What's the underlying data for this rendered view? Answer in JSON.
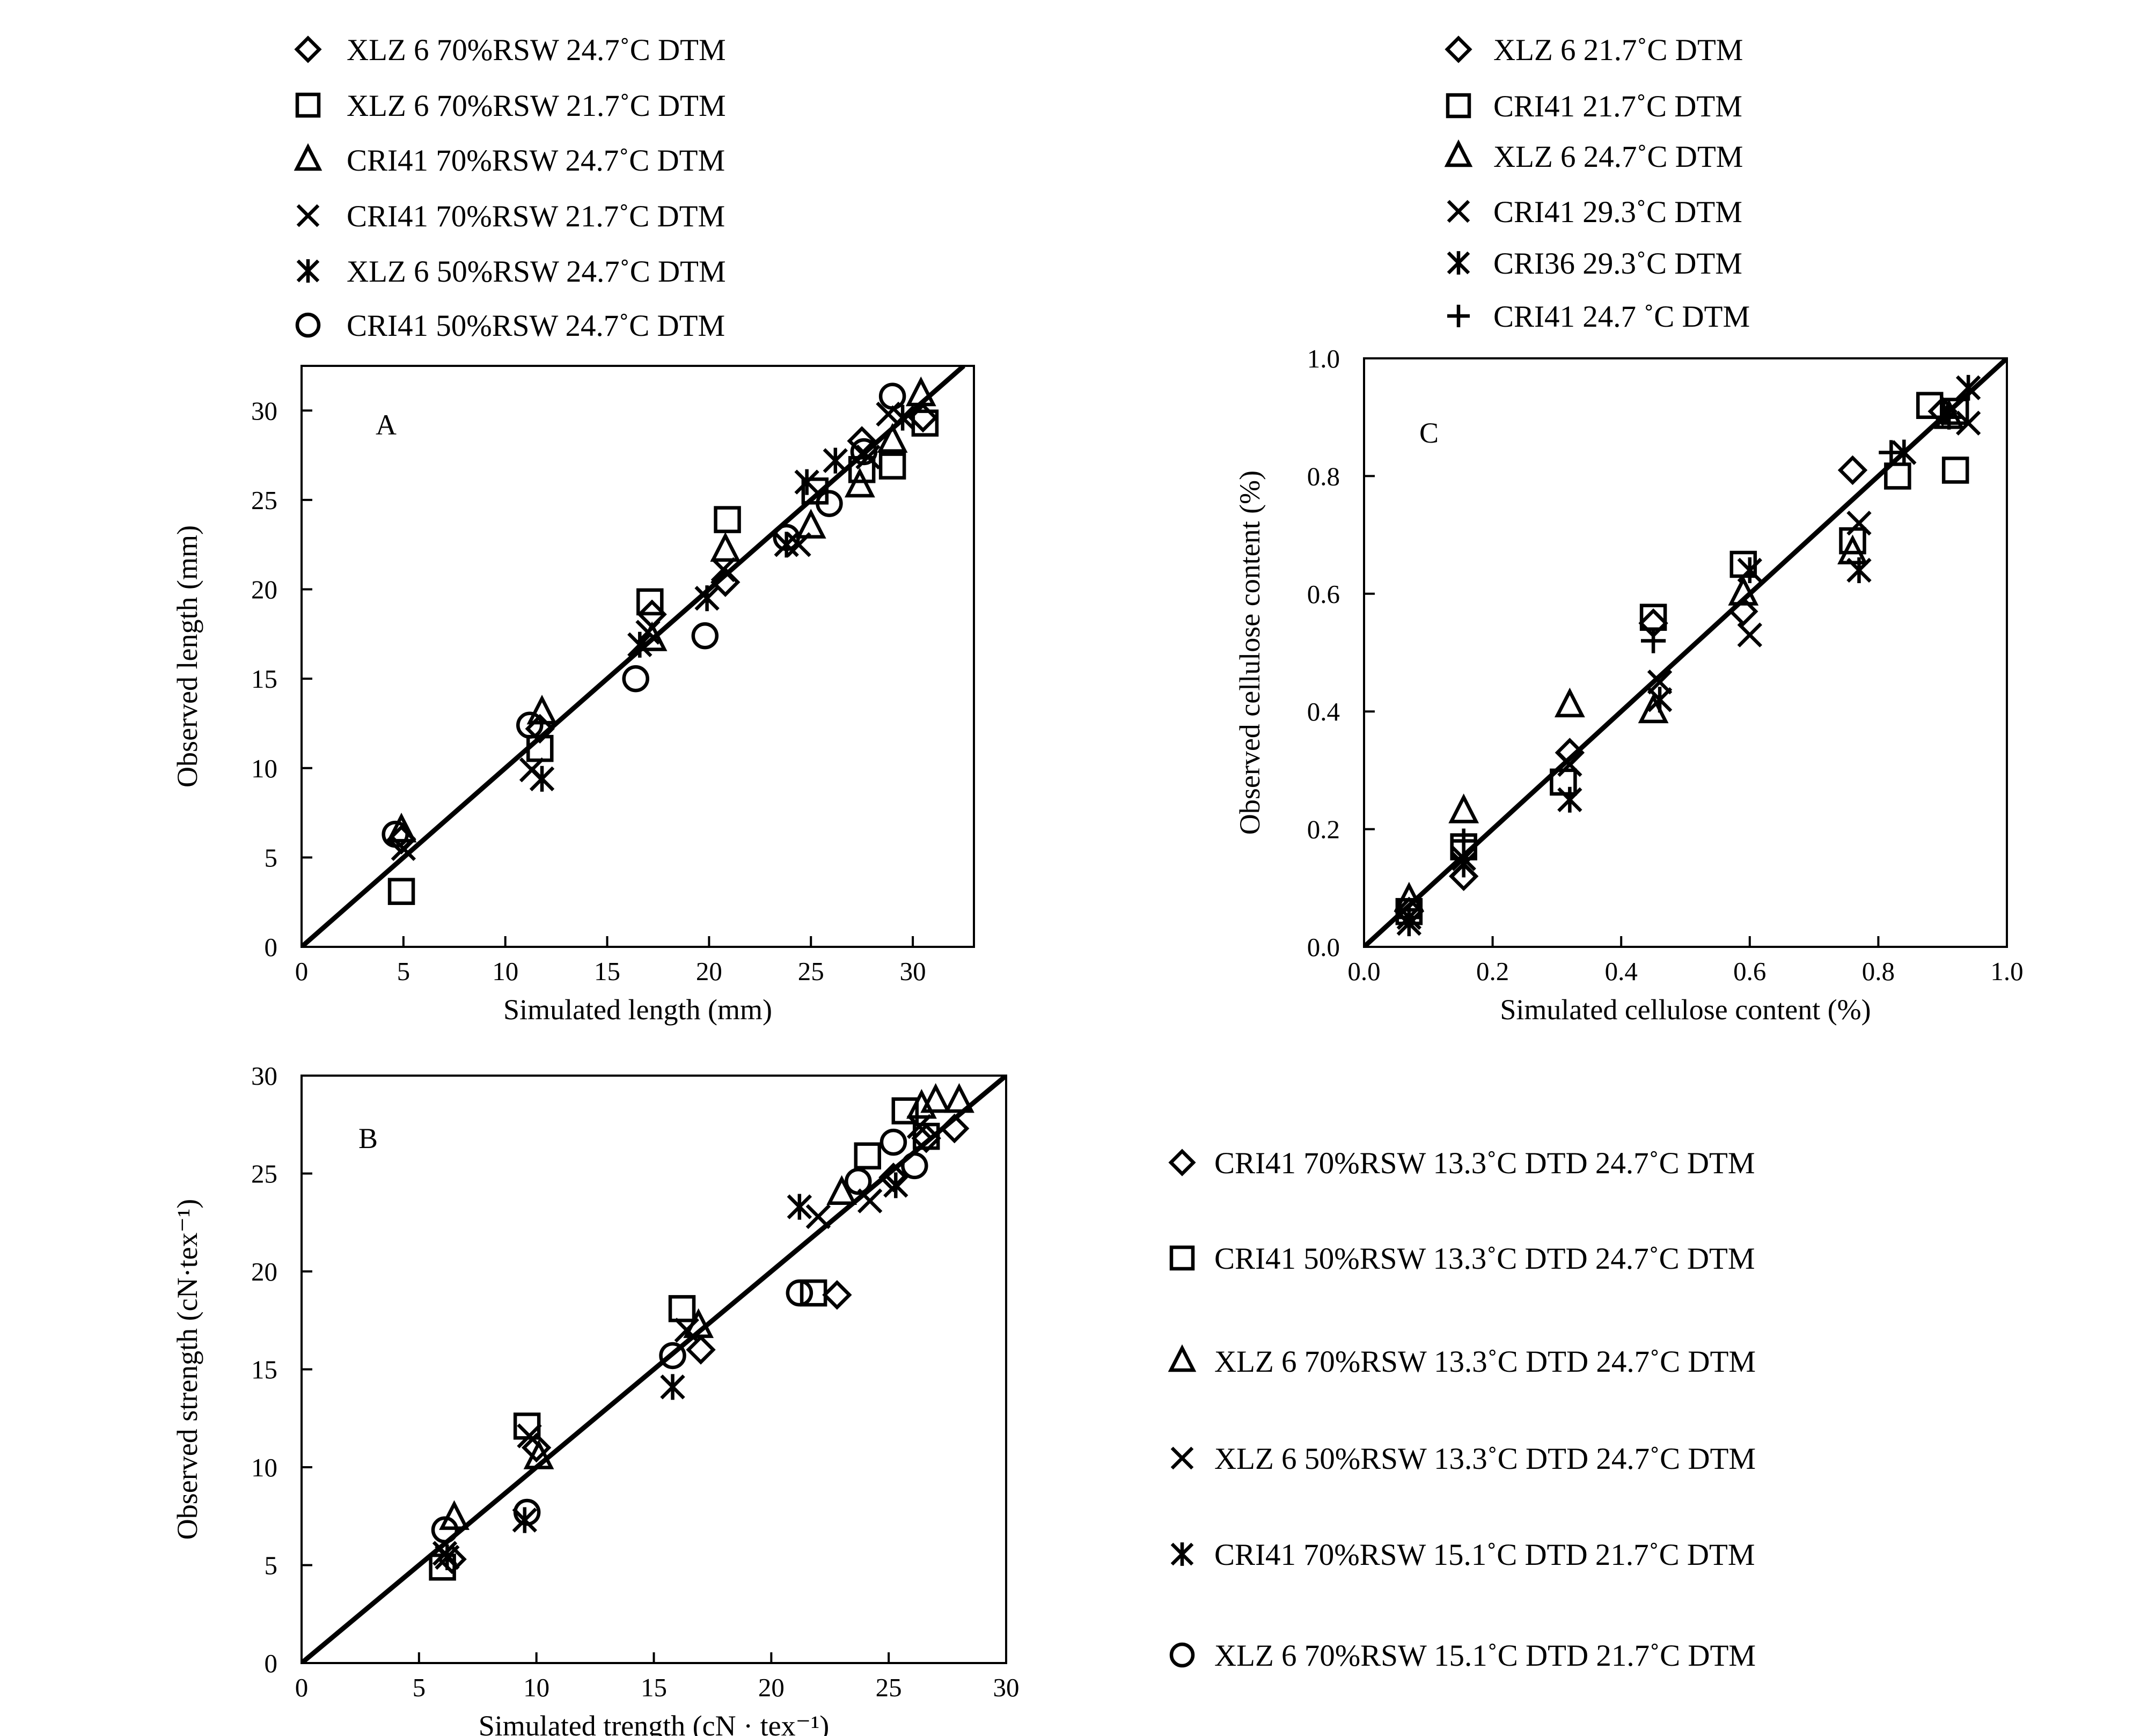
{
  "figure": {
    "background": "#ffffff",
    "ink": "#000000"
  },
  "chart_data": [
    {
      "id": "A",
      "type": "scatter",
      "panel_label": "A",
      "xlabel": "Simulated length (mm)",
      "ylabel": "Observed length (mm)",
      "xlim": [
        0,
        33
      ],
      "ylim": [
        0,
        32.5
      ],
      "xticks": [
        0,
        5,
        10,
        15,
        20,
        25,
        30
      ],
      "yticks": [
        0,
        5,
        10,
        15,
        20,
        25,
        30
      ],
      "xtick_labels": [
        "0",
        "5",
        "10",
        "15",
        "20",
        "25",
        "30"
      ],
      "ytick_labels": [
        "0",
        "5",
        "10",
        "15",
        "20",
        "25",
        "30"
      ],
      "reference_line": "1:1",
      "legend_position": "top",
      "series": [
        {
          "name": "XLZ 6   70%RSW   24.7˚C  DTM",
          "marker": "diamond",
          "points": [
            [
              4.9,
              6.0
            ],
            [
              11.7,
              12.2
            ],
            [
              17.2,
              18.6
            ],
            [
              20.8,
              20.4
            ],
            [
              27.5,
              28.3
            ],
            [
              30.5,
              29.6
            ]
          ]
        },
        {
          "name": "XLZ 6   70%RSW   21.7˚C  DTM",
          "marker": "square",
          "points": [
            [
              4.9,
              3.1
            ],
            [
              11.7,
              11.1
            ],
            [
              17.1,
              19.3
            ],
            [
              20.9,
              23.9
            ],
            [
              25.2,
              25.5
            ],
            [
              27.5,
              26.7
            ],
            [
              29.0,
              26.9
            ],
            [
              30.6,
              29.3
            ]
          ]
        },
        {
          "name": "CRI41   70%RSW   24.7˚C  DTM",
          "marker": "triangle",
          "points": [
            [
              4.9,
              6.5
            ],
            [
              11.8,
              13.1
            ],
            [
              17.2,
              17.2
            ],
            [
              20.8,
              22.2
            ],
            [
              25.0,
              23.5
            ],
            [
              27.4,
              25.8
            ],
            [
              29.0,
              28.3
            ],
            [
              30.4,
              30.9
            ]
          ]
        },
        {
          "name": "CRI41   70%RSW   21.7˚C  DTM",
          "marker": "x",
          "points": [
            [
              5.0,
              5.5
            ],
            [
              11.3,
              9.9
            ],
            [
              17.0,
              17.6
            ],
            [
              20.7,
              21.1
            ],
            [
              24.4,
              22.5
            ],
            [
              27.8,
              27.4
            ],
            [
              28.8,
              29.8
            ]
          ]
        },
        {
          "name": "XLZ 6   50%RSW   24.7˚C  DTM",
          "marker": "asterisk",
          "points": [
            [
              11.8,
              9.4
            ],
            [
              16.6,
              16.9
            ],
            [
              19.9,
              19.5
            ],
            [
              23.8,
              22.5
            ],
            [
              24.8,
              26.0
            ],
            [
              26.2,
              27.2
            ],
            [
              29.5,
              29.6
            ]
          ]
        },
        {
          "name": "CRI41   50%RSW   24.7˚C  DTM",
          "marker": "circle",
          "points": [
            [
              4.6,
              6.3
            ],
            [
              11.2,
              12.4
            ],
            [
              16.4,
              15.0
            ],
            [
              19.8,
              17.4
            ],
            [
              23.8,
              22.9
            ],
            [
              25.9,
              24.8
            ],
            [
              27.6,
              27.7
            ],
            [
              29.0,
              30.8
            ]
          ]
        }
      ]
    },
    {
      "id": "B",
      "type": "scatter",
      "panel_label": "B",
      "xlabel": "Simulated trength (cN · tex⁻¹)",
      "ylabel": "Observed strength (cN·tex⁻¹)",
      "xlim": [
        0,
        30
      ],
      "ylim": [
        0,
        30
      ],
      "xticks": [
        0,
        5,
        10,
        15,
        20,
        25,
        30
      ],
      "yticks": [
        0,
        5,
        10,
        15,
        20,
        25,
        30
      ],
      "xtick_labels": [
        "0",
        "5",
        "10",
        "15",
        "20",
        "25",
        "30"
      ],
      "ytick_labels": [
        "0",
        "5",
        "10",
        "15",
        "20",
        "25",
        "30"
      ],
      "reference_line": "1:1",
      "legend_position": "right",
      "series": [
        {
          "name": "CRI41  70%RSW 13.3˚C DTD  24.7˚C DTM",
          "marker": "diamond",
          "points": [
            [
              6.4,
              5.3
            ],
            [
              10.0,
              11.0
            ],
            [
              17.0,
              16.0
            ],
            [
              22.8,
              18.8
            ],
            [
              25.2,
              24.8
            ],
            [
              26.6,
              26.8
            ],
            [
              27.8,
              27.3
            ]
          ]
        },
        {
          "name": "CRI41  50%RSW 13.3˚C DTD  24.7˚C DTM",
          "marker": "square",
          "points": [
            [
              6.0,
              4.9
            ],
            [
              9.6,
              12.1
            ],
            [
              16.2,
              18.1
            ],
            [
              21.8,
              18.9
            ],
            [
              24.1,
              25.9
            ],
            [
              25.7,
              28.2
            ],
            [
              26.6,
              26.9
            ]
          ]
        },
        {
          "name": "XLZ 6  70%RSW 13.3˚C DTD  24.7˚C DTM",
          "marker": "triangle",
          "points": [
            [
              6.5,
              7.4
            ],
            [
              10.1,
              10.5
            ],
            [
              16.9,
              17.2
            ],
            [
              23.0,
              24.0
            ],
            [
              26.4,
              28.4
            ],
            [
              27.0,
              28.7
            ],
            [
              28.0,
              28.7
            ]
          ]
        },
        {
          "name": "XLZ 6  50%RSW 13.3˚C DTD  24.7˚C DTM",
          "marker": "x",
          "points": [
            [
              6.1,
              5.6
            ],
            [
              9.7,
              11.6
            ],
            [
              16.4,
              17.0
            ],
            [
              22.0,
              22.8
            ],
            [
              24.2,
              23.6
            ],
            [
              26.3,
              27.4
            ]
          ]
        },
        {
          "name": "CRI41  70%RSW 15.1˚C DTD  21.7˚C DTM",
          "marker": "asterisk",
          "points": [
            [
              6.2,
              5.4
            ],
            [
              9.5,
              7.3
            ],
            [
              15.8,
              14.1
            ],
            [
              21.2,
              23.3
            ],
            [
              25.3,
              24.4
            ]
          ]
        },
        {
          "name": "XLZ 6  70%RSW 15.1˚C DTD  21.7˚C DTM",
          "marker": "circle",
          "points": [
            [
              6.1,
              6.8
            ],
            [
              9.6,
              7.7
            ],
            [
              15.8,
              15.7
            ],
            [
              21.2,
              18.9
            ],
            [
              23.7,
              24.6
            ],
            [
              25.2,
              26.6
            ],
            [
              26.1,
              25.4
            ]
          ]
        }
      ]
    },
    {
      "id": "C",
      "type": "scatter",
      "panel_label": "C",
      "xlabel": "Simulated cellulose content (%)",
      "ylabel": "Observed cellulose content (%)",
      "xlim": [
        0,
        1.0
      ],
      "ylim": [
        0,
        1.0
      ],
      "xticks": [
        0,
        0.2,
        0.4,
        0.6,
        0.8,
        1.0
      ],
      "yticks": [
        0,
        0.2,
        0.4,
        0.6,
        0.8,
        1.0
      ],
      "xtick_labels": [
        "0.0",
        "0.2",
        "0.4",
        "0.6",
        "0.8",
        "1.0"
      ],
      "ytick_labels": [
        "0.0",
        "0.2",
        "0.4",
        "0.6",
        "0.8",
        "1.0"
      ],
      "reference_line": "1:1",
      "legend_position": "top",
      "series": [
        {
          "name": "XLZ 6  21.7˚C DTM",
          "marker": "diamond",
          "points": [
            [
              0.07,
              0.06
            ],
            [
              0.155,
              0.12
            ],
            [
              0.32,
              0.33
            ],
            [
              0.45,
              0.55
            ],
            [
              0.59,
              0.57
            ],
            [
              0.76,
              0.81
            ],
            [
              0.9,
              0.91
            ]
          ]
        },
        {
          "name": "CRI41  21.7˚C DTM",
          "marker": "square",
          "points": [
            [
              0.07,
              0.06
            ],
            [
              0.155,
              0.17
            ],
            [
              0.31,
              0.28
            ],
            [
              0.45,
              0.56
            ],
            [
              0.59,
              0.65
            ],
            [
              0.76,
              0.69
            ],
            [
              0.83,
              0.8
            ],
            [
              0.88,
              0.92
            ],
            [
              0.92,
              0.81
            ],
            [
              0.92,
              0.91
            ]
          ]
        },
        {
          "name": "XLZ 6  24.7˚C DTM",
          "marker": "triangle",
          "points": [
            [
              0.07,
              0.08
            ],
            [
              0.155,
              0.23
            ],
            [
              0.32,
              0.41
            ],
            [
              0.45,
              0.4
            ],
            [
              0.59,
              0.6
            ],
            [
              0.76,
              0.67
            ],
            [
              0.91,
              0.9
            ]
          ]
        },
        {
          "name": "CRI41  29.3˚C DTM",
          "marker": "x",
          "points": [
            [
              0.07,
              0.05
            ],
            [
              0.155,
              0.15
            ],
            [
              0.32,
              0.31
            ],
            [
              0.46,
              0.45
            ],
            [
              0.6,
              0.53
            ],
            [
              0.77,
              0.72
            ],
            [
              0.94,
              0.89
            ]
          ]
        },
        {
          "name": "CRI36   29.3˚C DTM",
          "marker": "asterisk",
          "points": [
            [
              0.07,
              0.04
            ],
            [
              0.155,
              0.14
            ],
            [
              0.32,
              0.25
            ],
            [
              0.46,
              0.42
            ],
            [
              0.6,
              0.64
            ],
            [
              0.77,
              0.64
            ],
            [
              0.84,
              0.84
            ],
            [
              0.94,
              0.95
            ]
          ]
        },
        {
          "name": "CRI41  24.7 ˚C DTM",
          "marker": "plus",
          "points": [
            [
              0.07,
              0.05
            ],
            [
              0.155,
              0.18
            ],
            [
              0.45,
              0.52
            ],
            [
              0.82,
              0.84
            ],
            [
              0.91,
              0.9
            ]
          ]
        }
      ]
    }
  ]
}
